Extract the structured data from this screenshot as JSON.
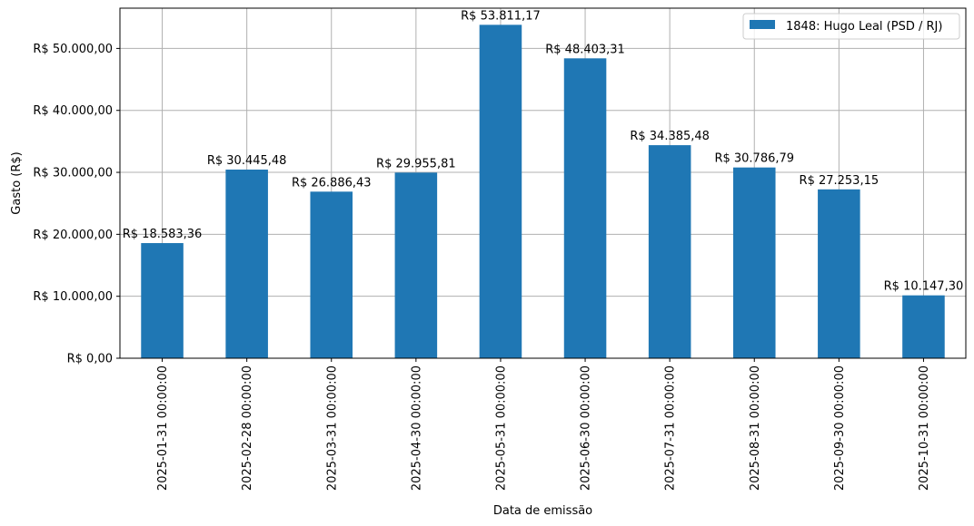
{
  "chart_data": {
    "type": "bar",
    "categories": [
      "2025-01-31 00:00:00",
      "2025-02-28 00:00:00",
      "2025-03-31 00:00:00",
      "2025-04-30 00:00:00",
      "2025-05-31 00:00:00",
      "2025-06-30 00:00:00",
      "2025-07-31 00:00:00",
      "2025-08-31 00:00:00",
      "2025-09-30 00:00:00",
      "2025-10-31 00:00:00"
    ],
    "series": [
      {
        "name": "1848: Hugo Leal (PSD / RJ)",
        "color": "#1f77b4",
        "values": [
          18583.36,
          30445.48,
          26886.43,
          29955.81,
          53811.17,
          48403.31,
          34385.48,
          30786.79,
          27253.15,
          10147.3
        ],
        "value_labels": [
          "R$ 18.583,36",
          "R$ 30.445,48",
          "R$ 26.886,43",
          "R$ 29.955,81",
          "R$ 53.811,17",
          "R$ 48.403,31",
          "R$ 34.385,48",
          "R$ 30.786,79",
          "R$ 27.253,15",
          "R$ 10.147,30"
        ]
      }
    ],
    "xlabel": "Data de emissão",
    "ylabel": "Gasto (R$)",
    "ylim": [
      0,
      56500
    ],
    "yticks": [
      0,
      10000,
      20000,
      30000,
      40000,
      50000
    ],
    "ytick_labels": [
      "R$ 0,00",
      "R$ 10.000,00",
      "R$ 20.000,00",
      "R$ 30.000,00",
      "R$ 40.000,00",
      "R$ 50.000,00"
    ],
    "grid": true,
    "legend_position": "top-right"
  }
}
